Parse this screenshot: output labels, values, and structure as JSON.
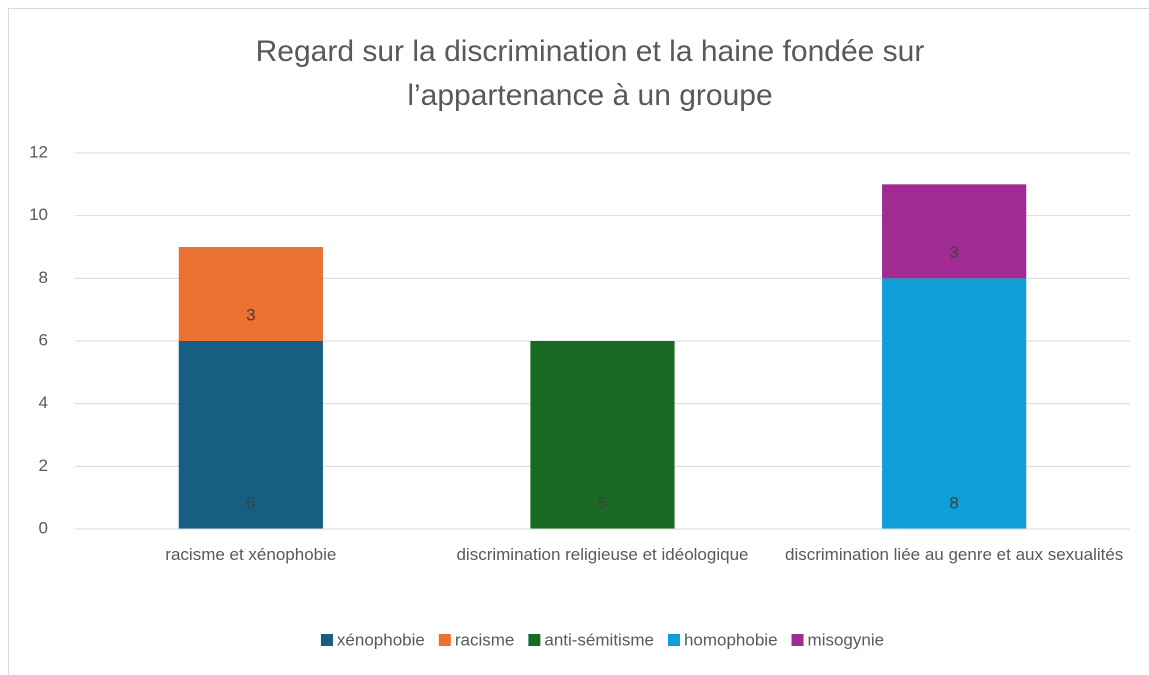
{
  "chart_data": {
    "type": "stacked_bar",
    "title": "Regard sur la discrimination et la haine fondée sur l’appartenance à un groupe",
    "categories": [
      "racisme et xénophobie",
      "discrimination religieuse et idéologique",
      "discrimination liée au genre et aux sexualités"
    ],
    "series": [
      {
        "name": "xénophobie",
        "color": "#156082",
        "values": [
          6,
          null,
          null
        ]
      },
      {
        "name": "racisme",
        "color": "#e97132",
        "values": [
          3,
          null,
          null
        ]
      },
      {
        "name": "anti-sémitisme",
        "color": "#196b24",
        "values": [
          null,
          6,
          null
        ]
      },
      {
        "name": "homophobie",
        "color": "#0f9ed5",
        "values": [
          null,
          null,
          8
        ]
      },
      {
        "name": "misogynie",
        "color": "#a02b93",
        "values": [
          null,
          null,
          3
        ]
      }
    ],
    "ylim": [
      0,
      12
    ],
    "yticks": [
      0,
      2,
      4,
      6,
      8,
      10,
      12
    ],
    "grid": true,
    "legend": "bottom"
  }
}
